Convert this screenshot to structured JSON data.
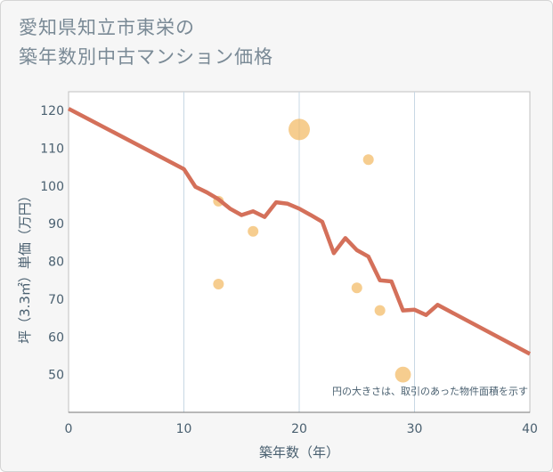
{
  "title": {
    "line1": "愛知県知立市東栄の",
    "line2": "築年数別中古マンション価格"
  },
  "note": "円の大きさは、取引のあった物件面積を示す",
  "colors": {
    "line": "#d4705a",
    "bubble": "#f2b860",
    "grid": "#c8d8e4",
    "plot_bg": "#ffffff",
    "axis": "#777777"
  },
  "chart_data": {
    "type": "scatter",
    "xlabel": "築年数（年）",
    "ylabel": "坪（3.3㎡）単価（万円）",
    "xlim": [
      0,
      40
    ],
    "ylim": [
      40,
      125
    ],
    "x_ticks": [
      0,
      10,
      20,
      30,
      40
    ],
    "y_ticks": [
      50,
      60,
      70,
      80,
      90,
      100,
      110,
      120
    ],
    "grid": "vertical",
    "line_series": {
      "name": "trend",
      "points": [
        [
          0,
          120.5
        ],
        [
          10,
          104.5
        ],
        [
          11,
          99.8
        ],
        [
          12,
          98.3
        ],
        [
          13,
          96.5
        ],
        [
          14,
          94
        ],
        [
          15,
          92.3
        ],
        [
          16,
          93.3
        ],
        [
          17,
          91.8
        ],
        [
          18,
          95.7
        ],
        [
          19,
          95.3
        ],
        [
          20,
          94
        ],
        [
          21,
          92.3
        ],
        [
          22,
          90.5
        ],
        [
          23,
          82.2
        ],
        [
          24,
          86.2
        ],
        [
          25,
          83
        ],
        [
          26,
          81.3
        ],
        [
          27,
          75
        ],
        [
          28,
          74.7
        ],
        [
          29,
          67
        ],
        [
          30,
          67.2
        ],
        [
          31,
          65.8
        ],
        [
          32,
          68.5
        ],
        [
          40,
          55.5
        ]
      ]
    },
    "bubbles": [
      {
        "x": 13,
        "y": 96,
        "size": 1
      },
      {
        "x": 13,
        "y": 74,
        "size": 1
      },
      {
        "x": 16,
        "y": 88,
        "size": 1
      },
      {
        "x": 20,
        "y": 115,
        "size": 4
      },
      {
        "x": 25,
        "y": 73,
        "size": 1
      },
      {
        "x": 26,
        "y": 107,
        "size": 1
      },
      {
        "x": 27,
        "y": 67,
        "size": 1
      },
      {
        "x": 29,
        "y": 50,
        "size": 2.2
      }
    ]
  }
}
